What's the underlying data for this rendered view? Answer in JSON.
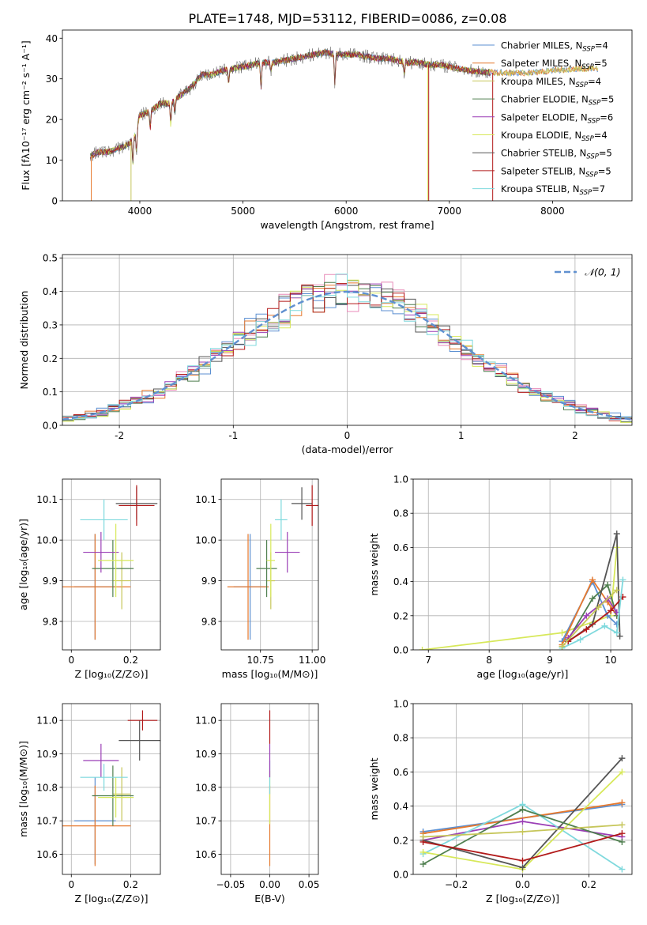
{
  "figure_title": "PLATE=1748, MJD=53112, FIBERID=0086, z=0.08",
  "colors": {
    "chabrier_miles": "#5b8fd1",
    "salpeter_miles": "#e6792e",
    "kroupa_miles": "#c6c65a",
    "chabrier_elodie": "#4f7f4f",
    "salpeter_elodie": "#9b3fb6",
    "kroupa_elodie": "#d7e85a",
    "chabrier_stelib": "#555555",
    "salpeter_stelib": "#b21a1a",
    "kroupa_stelib": "#7fd9dd",
    "gaussian": "#6090d0"
  },
  "chart_data": [
    {
      "id": "spectrum",
      "type": "line",
      "xlabel": "wavelength [Angstrom, rest frame]",
      "ylabel": "Flux [fλ10⁻¹⁷ erg cm⁻² s⁻¹ A⁻¹]",
      "xlim": [
        3250,
        8770
      ],
      "ylim": [
        0,
        42
      ],
      "xticks": [
        4000,
        5000,
        6000,
        7000,
        8000
      ],
      "yticks": [
        0,
        10,
        20,
        30,
        40
      ],
      "legend_position": "right",
      "legend": [
        {
          "label": "Chabrier MILES, N",
          "sub": "SSP",
          "suffix": "=4",
          "color_key": "chabrier_miles"
        },
        {
          "label": "Salpeter MILES, N",
          "sub": "SSP",
          "suffix": "=5",
          "color_key": "salpeter_miles"
        },
        {
          "label": "Kroupa MILES, N",
          "sub": "SSP",
          "suffix": "=4",
          "color_key": "kroupa_miles"
        },
        {
          "label": "Chabrier ELODIE, N",
          "sub": "SSP",
          "suffix": "=5",
          "color_key": "chabrier_elodie"
        },
        {
          "label": "Salpeter ELODIE, N",
          "sub": "SSP",
          "suffix": "=6",
          "color_key": "salpeter_elodie"
        },
        {
          "label": "Kroupa ELODIE, N",
          "sub": "SSP",
          "suffix": "=4",
          "color_key": "kroupa_elodie"
        },
        {
          "label": "Chabrier STELIB, N",
          "sub": "SSP",
          "suffix": "=5",
          "color_key": "chabrier_stelib"
        },
        {
          "label": "Salpeter STELIB, N",
          "sub": "SSP",
          "suffix": "=5",
          "color_key": "salpeter_stelib"
        },
        {
          "label": "Kroupa STELIB, N",
          "sub": "SSP",
          "suffix": "=7",
          "color_key": "kroupa_stelib"
        }
      ],
      "continuum": [
        [
          3520,
          11
        ],
        [
          3600,
          12
        ],
        [
          3700,
          12
        ],
        [
          3800,
          13
        ],
        [
          3900,
          14
        ],
        [
          3950,
          16
        ],
        [
          4000,
          21
        ],
        [
          4100,
          22
        ],
        [
          4200,
          24
        ],
        [
          4300,
          24
        ],
        [
          4400,
          26
        ],
        [
          4500,
          28
        ],
        [
          4600,
          31
        ],
        [
          4700,
          31
        ],
        [
          4800,
          32
        ],
        [
          4900,
          32.5
        ],
        [
          5000,
          33
        ],
        [
          5100,
          33.5
        ],
        [
          5200,
          34
        ],
        [
          5300,
          34
        ],
        [
          5400,
          34.5
        ],
        [
          5500,
          35
        ],
        [
          5600,
          35.5
        ],
        [
          5700,
          36
        ],
        [
          5800,
          36.5
        ],
        [
          5900,
          36
        ],
        [
          6000,
          36
        ],
        [
          6100,
          36
        ],
        [
          6200,
          35.5
        ],
        [
          6300,
          35
        ],
        [
          6400,
          35
        ],
        [
          6500,
          34.5
        ],
        [
          6600,
          34
        ],
        [
          6700,
          34
        ],
        [
          6800,
          33.5
        ],
        [
          6900,
          33.5
        ],
        [
          7000,
          33
        ],
        [
          7200,
          32
        ],
        [
          7400,
          31.5
        ],
        [
          7600,
          31.5
        ],
        [
          7800,
          31.5
        ],
        [
          8000,
          32
        ],
        [
          8200,
          32.5
        ],
        [
          8400,
          32.5
        ]
      ],
      "absorption_lines": [
        [
          3933,
          6
        ],
        [
          3968,
          6
        ],
        [
          4101,
          4
        ],
        [
          4300,
          5
        ],
        [
          4340,
          3
        ],
        [
          4861,
          3
        ],
        [
          5175,
          6
        ],
        [
          5270,
          2
        ],
        [
          5890,
          7
        ],
        [
          6563,
          3
        ]
      ],
      "dropouts": [
        {
          "series": "kroupa_miles",
          "x": 3915,
          "to": 0
        },
        {
          "series": "kroupa_elodie",
          "x": 6790,
          "to": 0
        },
        {
          "series": "salpeter_stelib",
          "x": 6800,
          "to": 0
        },
        {
          "series": "salpeter_stelib",
          "x": 7420,
          "to": 0
        },
        {
          "series": "salpeter_miles",
          "x": 3530,
          "to": 0
        }
      ]
    },
    {
      "id": "residuals",
      "type": "step",
      "xlabel": "(data-model)/error",
      "ylabel": "Normed distribution",
      "xlim": [
        -2.5,
        2.5
      ],
      "ylim": [
        0,
        0.51
      ],
      "xticks": [
        -2,
        -1,
        0,
        1,
        2
      ],
      "yticks": [
        0.0,
        0.1,
        0.2,
        0.3,
        0.4,
        0.5
      ],
      "grid": true,
      "legend_position": "top-right",
      "gaussian_label": "𝒩(0, 1)",
      "gaussian": {
        "mean": 0,
        "sigma": 1
      },
      "bin_width": 0.1
    },
    {
      "id": "age_vs_Z",
      "type": "errorbar",
      "xlabel": "Z [log₁₀(Z/Z⊙)]",
      "ylabel": "age  [log₁₀(age/yr)]",
      "xlim": [
        -0.03,
        0.3
      ],
      "ylim": [
        9.73,
        10.15
      ],
      "xticks": [
        0.0,
        0.2
      ],
      "yticks": [
        9.8,
        9.9,
        10.0,
        10.1
      ],
      "grid": true,
      "points": [
        {
          "c": "chabrier_miles",
          "x": 0.08,
          "xe": 0.07,
          "y": 9.885,
          "ye": 0.13
        },
        {
          "c": "salpeter_miles",
          "x": 0.08,
          "xe": 0.12,
          "y": 9.885,
          "ye": 0.13
        },
        {
          "c": "kroupa_miles",
          "x": 0.17,
          "xe": 0.03,
          "y": 9.9,
          "ye": 0.07
        },
        {
          "c": "chabrier_elodie",
          "x": 0.14,
          "xe": 0.07,
          "y": 9.93,
          "ye": 0.07
        },
        {
          "c": "salpeter_elodie",
          "x": 0.1,
          "xe": 0.06,
          "y": 9.97,
          "ye": 0.05
        },
        {
          "c": "kroupa_elodie",
          "x": 0.15,
          "xe": 0.06,
          "y": 9.95,
          "ye": 0.09
        },
        {
          "c": "chabrier_stelib",
          "x": 0.22,
          "xe": 0.07,
          "y": 10.09,
          "ye": 0.04
        },
        {
          "c": "salpeter_stelib",
          "x": 0.22,
          "xe": 0.06,
          "y": 10.085,
          "ye": 0.05
        },
        {
          "c": "kroupa_stelib",
          "x": 0.11,
          "xe": 0.08,
          "y": 10.05,
          "ye": 0.05
        }
      ]
    },
    {
      "id": "age_vs_mass",
      "type": "errorbar",
      "xlabel": "mass [log₁₀(M/M⊙)]",
      "ylabel": "",
      "xlim": [
        10.56,
        11.03
      ],
      "ylim": [
        9.73,
        10.15
      ],
      "xticks": [
        10.75,
        11.0
      ],
      "xtick_labels": [
        "10.75",
        "11.00"
      ],
      "yticks": [
        9.8,
        9.9,
        10.0,
        10.1
      ],
      "grid": true,
      "points": [
        {
          "c": "chabrier_miles",
          "x": 10.7,
          "xe": 0.08,
          "y": 9.885,
          "ye": 0.13
        },
        {
          "c": "salpeter_miles",
          "x": 10.69,
          "xe": 0.1,
          "y": 9.885,
          "ye": 0.13
        },
        {
          "c": "kroupa_miles",
          "x": 10.8,
          "xe": 0.02,
          "y": 9.9,
          "ye": 0.07
        },
        {
          "c": "chabrier_elodie",
          "x": 10.78,
          "xe": 0.05,
          "y": 9.93,
          "ye": 0.07
        },
        {
          "c": "salpeter_elodie",
          "x": 10.88,
          "xe": 0.06,
          "y": 9.97,
          "ye": 0.05
        },
        {
          "c": "kroupa_elodie",
          "x": 10.8,
          "xe": 0.02,
          "y": 9.95,
          "ye": 0.09
        },
        {
          "c": "chabrier_stelib",
          "x": 10.95,
          "xe": 0.05,
          "y": 10.09,
          "ye": 0.04
        },
        {
          "c": "salpeter_stelib",
          "x": 11.0,
          "xe": 0.03,
          "y": 10.085,
          "ye": 0.05
        },
        {
          "c": "kroupa_stelib",
          "x": 10.85,
          "xe": 0.03,
          "y": 10.05,
          "ye": 0.05
        }
      ]
    },
    {
      "id": "weight_vs_age",
      "type": "line",
      "xlabel": "age  [log₁₀(age/yr)]",
      "ylabel": "mass weight",
      "xlim": [
        6.75,
        10.35
      ],
      "ylim": [
        0,
        1
      ],
      "xticks": [
        7,
        8,
        9,
        10
      ],
      "yticks": [
        0.0,
        0.2,
        0.4,
        0.6,
        0.8,
        1.0
      ],
      "grid": true,
      "series": [
        {
          "c": "kroupa_elodie",
          "x": [
            6.9,
            9.2,
            10.0,
            10.1
          ],
          "y": [
            0.0,
            0.1,
            0.2,
            0.6
          ]
        },
        {
          "c": "chabrier_miles",
          "x": [
            9.2,
            9.7,
            9.95,
            10.1
          ],
          "y": [
            0.05,
            0.4,
            0.2,
            0.15
          ]
        },
        {
          "c": "salpeter_miles",
          "x": [
            9.2,
            9.7,
            9.95,
            10.1
          ],
          "y": [
            0.03,
            0.41,
            0.28,
            0.2
          ]
        },
        {
          "c": "chabrier_elodie",
          "x": [
            9.3,
            9.7,
            9.95,
            10.1
          ],
          "y": [
            0.06,
            0.3,
            0.38,
            0.2
          ]
        },
        {
          "c": "salpeter_elodie",
          "x": [
            9.3,
            9.6,
            9.95,
            10.1
          ],
          "y": [
            0.07,
            0.2,
            0.3,
            0.22
          ]
        },
        {
          "c": "chabrier_stelib",
          "x": [
            9.3,
            9.7,
            10.1,
            10.15
          ],
          "y": [
            0.05,
            0.15,
            0.68,
            0.08
          ]
        },
        {
          "c": "salpeter_stelib",
          "x": [
            9.3,
            9.6,
            10.0,
            10.2
          ],
          "y": [
            0.05,
            0.12,
            0.23,
            0.31
          ]
        },
        {
          "c": "kroupa_stelib",
          "x": [
            9.2,
            9.5,
            9.9,
            10.1,
            10.2
          ],
          "y": [
            0.01,
            0.06,
            0.14,
            0.1,
            0.41
          ]
        },
        {
          "c": "kroupa_miles",
          "x": [
            9.2,
            9.8,
            10.1
          ],
          "y": [
            0.02,
            0.25,
            0.35
          ]
        }
      ]
    },
    {
      "id": "mass_vs_Z",
      "type": "errorbar",
      "xlabel": "Z [log₁₀(Z/Z⊙)]",
      "ylabel": "mass [log₁₀(M/M⊙)]",
      "xlim": [
        -0.03,
        0.3
      ],
      "ylim": [
        10.54,
        11.05
      ],
      "xticks": [
        0.0,
        0.2
      ],
      "yticks": [
        10.6,
        10.7,
        10.8,
        10.9,
        11.0
      ],
      "grid": true,
      "points": [
        {
          "c": "chabrier_miles",
          "x": 0.08,
          "xe": 0.07,
          "y": 10.7,
          "ye": 0.13
        },
        {
          "c": "salpeter_miles",
          "x": 0.08,
          "xe": 0.12,
          "y": 10.685,
          "ye": 0.12
        },
        {
          "c": "kroupa_miles",
          "x": 0.17,
          "xe": 0.03,
          "y": 10.78,
          "ye": 0.08
        },
        {
          "c": "chabrier_elodie",
          "x": 0.14,
          "xe": 0.07,
          "y": 10.775,
          "ye": 0.09
        },
        {
          "c": "salpeter_elodie",
          "x": 0.1,
          "xe": 0.06,
          "y": 10.88,
          "ye": 0.05
        },
        {
          "c": "kroupa_elodie",
          "x": 0.15,
          "xe": 0.06,
          "y": 10.77,
          "ye": 0.06
        },
        {
          "c": "chabrier_stelib",
          "x": 0.23,
          "xe": 0.07,
          "y": 10.94,
          "ye": 0.06
        },
        {
          "c": "salpeter_stelib",
          "x": 0.24,
          "xe": 0.05,
          "y": 11.0,
          "ye": 0.03
        },
        {
          "c": "kroupa_stelib",
          "x": 0.11,
          "xe": 0.08,
          "y": 10.83,
          "ye": 0.04
        }
      ]
    },
    {
      "id": "mass_vs_EBV",
      "type": "errorbar",
      "xlabel": "E(B-V)",
      "ylabel": "",
      "xlim": [
        -0.062,
        0.062
      ],
      "ylim": [
        10.54,
        11.05
      ],
      "xticks": [
        -0.05,
        0.0,
        0.05
      ],
      "xtick_labels": [
        "−0.05",
        "0.00",
        "0.05"
      ],
      "yticks": [
        10.6,
        10.7,
        10.8,
        10.9,
        11.0
      ],
      "grid": true,
      "points": [
        {
          "c": "salpeter_miles",
          "x": 0.0,
          "xe": 0,
          "y": 10.685,
          "ye": 0.12
        },
        {
          "c": "kroupa_elodie",
          "x": 0.0,
          "xe": 0,
          "y": 10.77,
          "ye": 0.08
        },
        {
          "c": "kroupa_stelib",
          "x": 0.0,
          "xe": 0,
          "y": 10.83,
          "ye": 0.05
        },
        {
          "c": "salpeter_elodie",
          "x": 0.0,
          "xe": 0,
          "y": 10.88,
          "ye": 0.05
        },
        {
          "c": "salpeter_stelib",
          "x": 0.0,
          "xe": 0,
          "y": 10.98,
          "ye": 0.05
        }
      ]
    },
    {
      "id": "weight_vs_Z",
      "type": "line",
      "xlabel": "Z [log₁₀(Z/Z⊙)]",
      "ylabel": "mass weight",
      "xlim": [
        -0.33,
        0.33
      ],
      "ylim": [
        0,
        1
      ],
      "xticks": [
        -0.2,
        0.0,
        0.2
      ],
      "xtick_labels": [
        "−0.2",
        "0.0",
        "0.2"
      ],
      "yticks": [
        0.0,
        0.2,
        0.4,
        0.6,
        0.8,
        1.0
      ],
      "grid": true,
      "series": [
        {
          "c": "chabrier_miles",
          "x": [
            -0.3,
            0.3
          ],
          "y": [
            0.25,
            0.41
          ]
        },
        {
          "c": "salpeter_miles",
          "x": [
            -0.3,
            0.3
          ],
          "y": [
            0.24,
            0.42
          ]
        },
        {
          "c": "salpeter_elodie",
          "x": [
            -0.3,
            0.0,
            0.3
          ],
          "y": [
            0.2,
            0.31,
            0.22
          ]
        },
        {
          "c": "kroupa_stelib",
          "x": [
            -0.3,
            0.0,
            0.3
          ],
          "y": [
            0.12,
            0.41,
            0.03
          ]
        },
        {
          "c": "kroupa_elodie",
          "x": [
            -0.3,
            0.0,
            0.3
          ],
          "y": [
            0.13,
            0.03,
            0.6
          ]
        },
        {
          "c": "chabrier_stelib",
          "x": [
            -0.3,
            0.0,
            0.3
          ],
          "y": [
            0.2,
            0.04,
            0.68
          ]
        },
        {
          "c": "chabrier_elodie",
          "x": [
            -0.3,
            0.0,
            0.3
          ],
          "y": [
            0.06,
            0.38,
            0.19
          ]
        },
        {
          "c": "salpeter_stelib",
          "x": [
            -0.3,
            0.0,
            0.3
          ],
          "y": [
            0.19,
            0.08,
            0.24
          ]
        },
        {
          "c": "kroupa_miles",
          "x": [
            -0.3,
            0.0,
            0.3
          ],
          "y": [
            0.22,
            0.25,
            0.29
          ]
        }
      ]
    }
  ]
}
